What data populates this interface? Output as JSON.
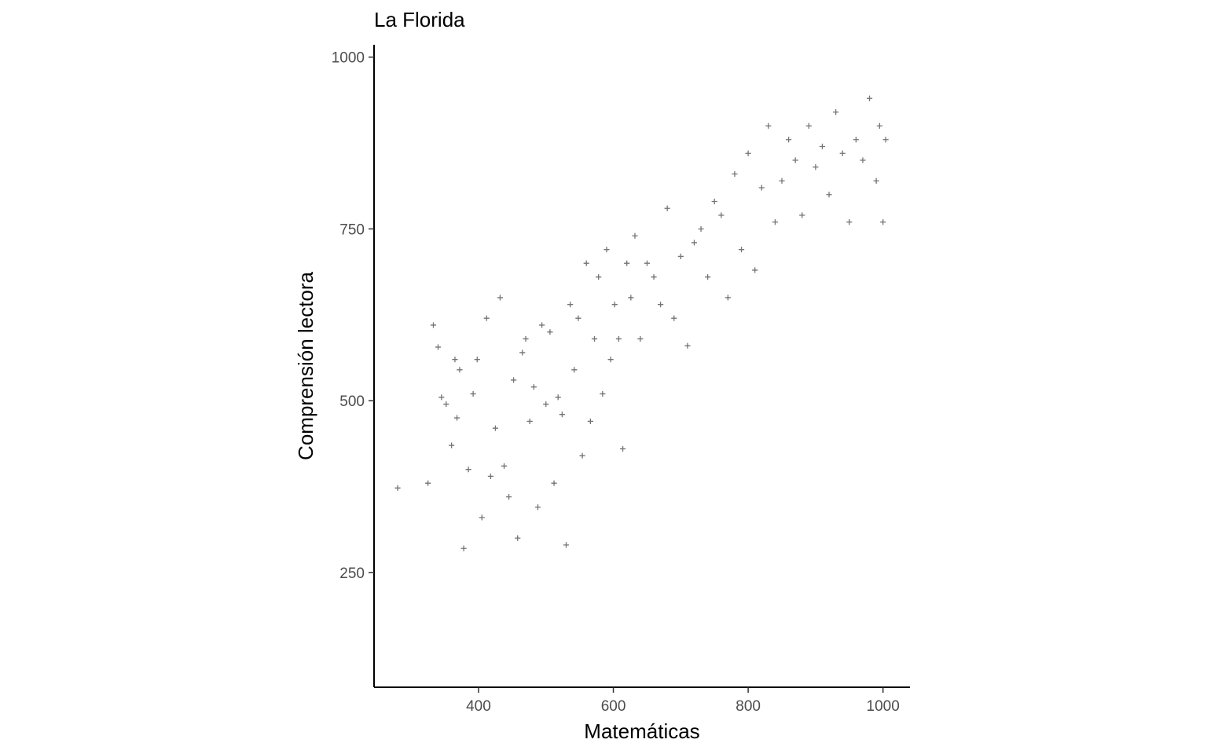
{
  "chart_data": {
    "type": "scatter",
    "title": "La Florida",
    "xlabel": "Matemáticas",
    "ylabel": "Comprensión lectora",
    "xlim": [
      245,
      1040
    ],
    "ylim": [
      83,
      1018
    ],
    "x_ticks": [
      400,
      600,
      800,
      1000
    ],
    "y_ticks": [
      250,
      500,
      750,
      1000
    ],
    "grid": false,
    "legend": "none",
    "marker": "plus",
    "marker_color": "#000000",
    "marker_alpha": 0.55,
    "approx_point_count": 4000,
    "x": [
      280,
      325,
      333,
      340,
      345,
      352,
      360,
      365,
      368,
      372,
      378,
      385,
      392,
      398,
      405,
      412,
      418,
      425,
      432,
      438,
      445,
      452,
      458,
      465,
      470,
      476,
      482,
      488,
      494,
      500,
      506,
      512,
      518,
      524,
      530,
      536,
      542,
      548,
      554,
      560,
      566,
      572,
      578,
      584,
      590,
      596,
      602,
      608,
      614,
      620,
      626,
      632,
      640,
      650,
      660,
      670,
      680,
      690,
      700,
      710,
      720,
      730,
      740,
      750,
      760,
      770,
      780,
      790,
      800,
      810,
      820,
      830,
      840,
      850,
      860,
      870,
      880,
      890,
      900,
      910,
      920,
      930,
      940,
      950,
      960,
      970,
      980,
      990,
      995,
      1000,
      1004
    ],
    "y": [
      373,
      380,
      610,
      578,
      505,
      495,
      435,
      560,
      475,
      545,
      285,
      400,
      510,
      560,
      330,
      620,
      390,
      460,
      650,
      405,
      360,
      530,
      300,
      570,
      590,
      470,
      520,
      345,
      610,
      495,
      600,
      380,
      505,
      480,
      290,
      640,
      545,
      620,
      420,
      700,
      470,
      590,
      680,
      510,
      720,
      560,
      640,
      590,
      430,
      700,
      650,
      740,
      590,
      700,
      680,
      640,
      780,
      620,
      710,
      580,
      730,
      750,
      680,
      790,
      770,
      650,
      830,
      720,
      860,
      690,
      810,
      900,
      760,
      820,
      880,
      850,
      770,
      900,
      840,
      870,
      800,
      920,
      860,
      760,
      880,
      850,
      940,
      820,
      900,
      760,
      880
    ]
  }
}
